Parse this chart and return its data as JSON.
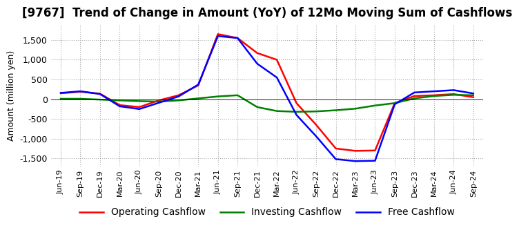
{
  "title": "[9767]  Trend of Change in Amount (YoY) of 12Mo Moving Sum of Cashflows",
  "ylabel": "Amount (million yen)",
  "ylim": [
    -1700,
    1900
  ],
  "yticks": [
    -1500,
    -1000,
    -500,
    0,
    500,
    1000,
    1500
  ],
  "x_labels": [
    "Jun-19",
    "Sep-19",
    "Dec-19",
    "Mar-20",
    "Jun-20",
    "Sep-20",
    "Dec-20",
    "Mar-21",
    "Jun-21",
    "Sep-21",
    "Dec-21",
    "Mar-22",
    "Jun-22",
    "Sep-22",
    "Dec-22",
    "Mar-23",
    "Jun-23",
    "Sep-23",
    "Dec-23",
    "Mar-24",
    "Jun-24",
    "Sep-24"
  ],
  "operating_cashflow": [
    150,
    190,
    140,
    -150,
    -200,
    -30,
    100,
    350,
    1650,
    1550,
    1170,
    1000,
    -100,
    -650,
    -1250,
    -1310,
    -1300,
    -100,
    80,
    100,
    130,
    50
  ],
  "investing_cashflow": [
    10,
    10,
    -10,
    -30,
    -50,
    -60,
    -30,
    20,
    70,
    100,
    -200,
    -300,
    -320,
    -310,
    -280,
    -240,
    -160,
    -100,
    20,
    80,
    110,
    100
  ],
  "free_cashflow": [
    160,
    200,
    130,
    -180,
    -250,
    -90,
    70,
    370,
    1600,
    1550,
    900,
    550,
    -400,
    -940,
    -1520,
    -1570,
    -1560,
    -130,
    170,
    200,
    230,
    145
  ],
  "operating_color": "#ff0000",
  "investing_color": "#008000",
  "free_color": "#0000ff",
  "background_color": "#ffffff",
  "grid_color": "#aaaaaa",
  "title_fontsize": 12,
  "axis_fontsize": 9,
  "tick_fontsize": 8,
  "legend_fontsize": 10
}
